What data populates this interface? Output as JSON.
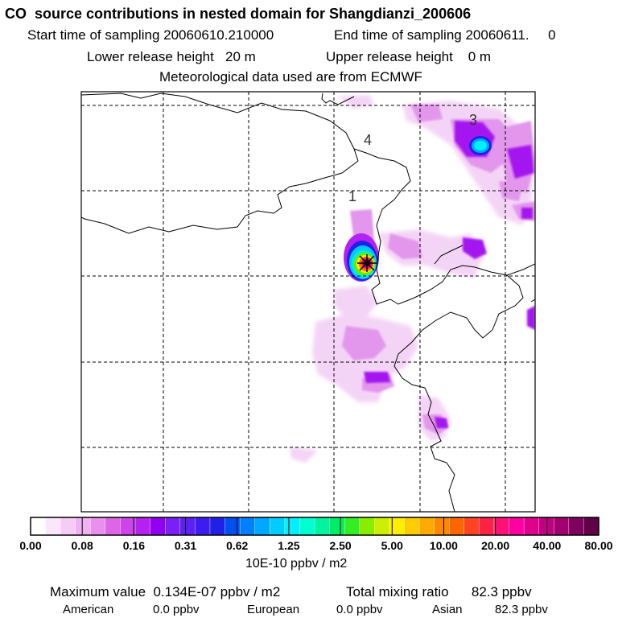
{
  "header": {
    "title": "CO  source contributions in nested domain for Shangdianzi_200606",
    "start_label": "Start time of sampling 20060610.210000",
    "end_label": "End time of sampling 20060611.     0",
    "lower_label": "Lower release height   20 m",
    "upper_label": "Upper release height    0 m",
    "met_label": "Meteorological data used are from ECMWF"
  },
  "map": {
    "station_marker": "station-cross-icon",
    "annotations": [
      "1",
      "3",
      "4"
    ]
  },
  "colorbar": {
    "ticks": [
      "0.00",
      "0.08",
      "0.16",
      "0.31",
      "0.62",
      "1.25",
      "2.50",
      "5.00",
      "10.00",
      "20.00",
      "40.00",
      "80.00"
    ],
    "unit": "10E-10 ppbv / m2",
    "colors": [
      "#ffffff",
      "#fbe6fb",
      "#f6ccf6",
      "#f0b3f2",
      "#e890ec",
      "#de66e6",
      "#cc44ea",
      "#b421f0",
      "#9100f3",
      "#7a1ff7",
      "#5c20f5",
      "#3d1cf0",
      "#2020e6",
      "#0050f0",
      "#0080ff",
      "#00a8ff",
      "#00ccff",
      "#00f0ff",
      "#00ffd0",
      "#00f5a0",
      "#00ee66",
      "#33ee22",
      "#88ee00",
      "#ccee00",
      "#ffee00",
      "#ffcc00",
      "#ffaa00",
      "#ff8800",
      "#ff6600",
      "#ff4422",
      "#ff2244",
      "#ff1177",
      "#ff00a0",
      "#e00090",
      "#c00080",
      "#a00070",
      "#800060",
      "#600048"
    ]
  },
  "stats": {
    "max_label": "Maximum value  0.134E-07 ppbv / m2",
    "total_label": "Total mixing ratio      82.3 ppbv",
    "american_label": "American",
    "american_value": "0.0 ppbv",
    "european_label": "European",
    "european_value": "0.0 ppbv",
    "asian_label": "Asian",
    "asian_value": "82.3 ppbv"
  }
}
